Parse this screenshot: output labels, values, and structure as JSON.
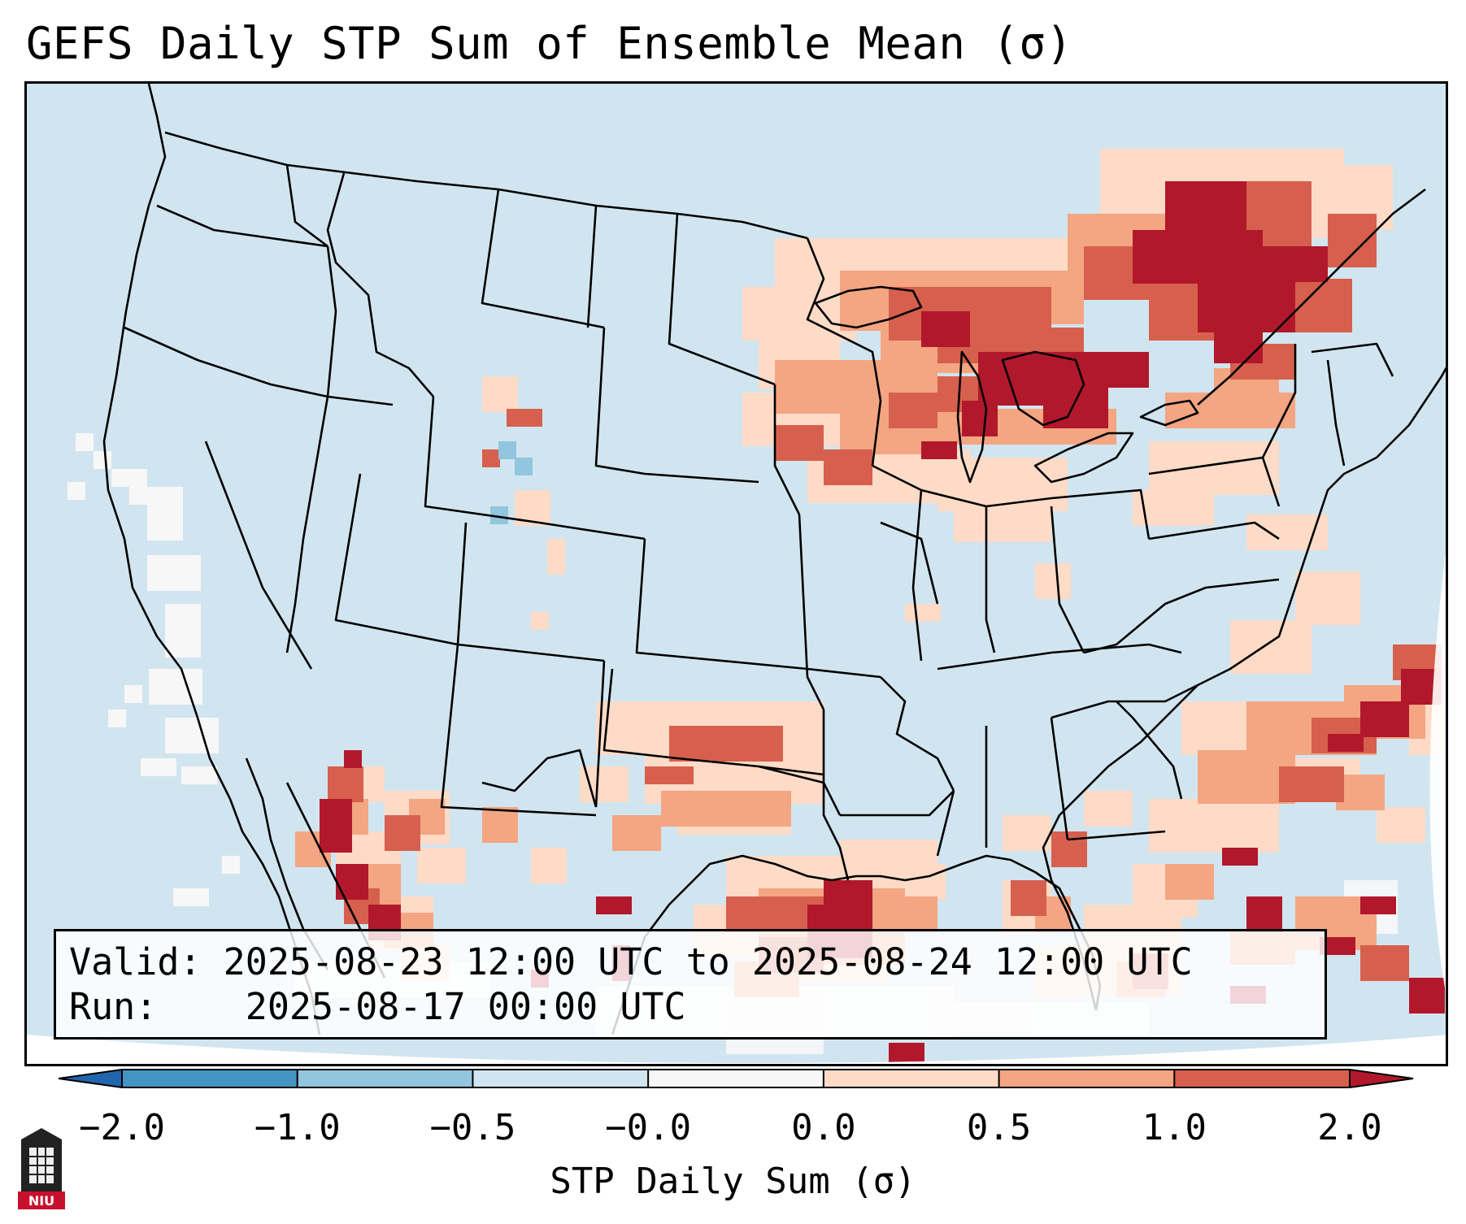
{
  "title": "GEFS Daily STP Sum of Ensemble Mean (σ)",
  "info": {
    "valid_label": "Valid:",
    "valid_text": "2025-08-23 12:00 UTC to 2025-08-24 12:00 UTC",
    "run_label": "Run:",
    "run_text": "2025-08-17 00:00 UTC"
  },
  "colorbar": {
    "label": "STP Daily Sum (σ)",
    "ticks": [
      "−2.0",
      "−1.0",
      "−0.5",
      "−0.0",
      "0.0",
      "0.5",
      "1.0",
      "2.0"
    ],
    "bins": [
      {
        "range": "< -2.0",
        "color": "#2166ac"
      },
      {
        "range": "-2.0 to -1.0",
        "color": "#4393c3"
      },
      {
        "range": "-1.0 to -0.5",
        "color": "#92c5de"
      },
      {
        "range": "-0.5 to -0.0",
        "color": "#d1e5f0"
      },
      {
        "range": "-0.0 to 0.0",
        "color": "#f7f7f7"
      },
      {
        "range": "0.0 to 0.5",
        "color": "#fddbc7"
      },
      {
        "range": "0.5 to 1.0",
        "color": "#f4a582"
      },
      {
        "range": "1.0 to 2.0",
        "color": "#d6604d"
      },
      {
        "range": "> 2.0",
        "color": "#b2182b"
      }
    ]
  },
  "map": {
    "background_color": "#d1e5f0",
    "features": [
      "state-borders",
      "coastlines",
      "country-borders"
    ],
    "anomaly_regions": [
      {
        "name": "great-lakes-northeast",
        "level": "high"
      },
      {
        "name": "upper-midwest",
        "level": "moderate"
      },
      {
        "name": "western-gulf-coast",
        "level": "high"
      },
      {
        "name": "west-texas",
        "level": "moderate"
      },
      {
        "name": "northwest-mexico",
        "level": "high"
      },
      {
        "name": "western-atlantic",
        "level": "high"
      },
      {
        "name": "pacific-offshore",
        "level": "neutral"
      }
    ]
  },
  "logo": {
    "text": "NIU"
  }
}
